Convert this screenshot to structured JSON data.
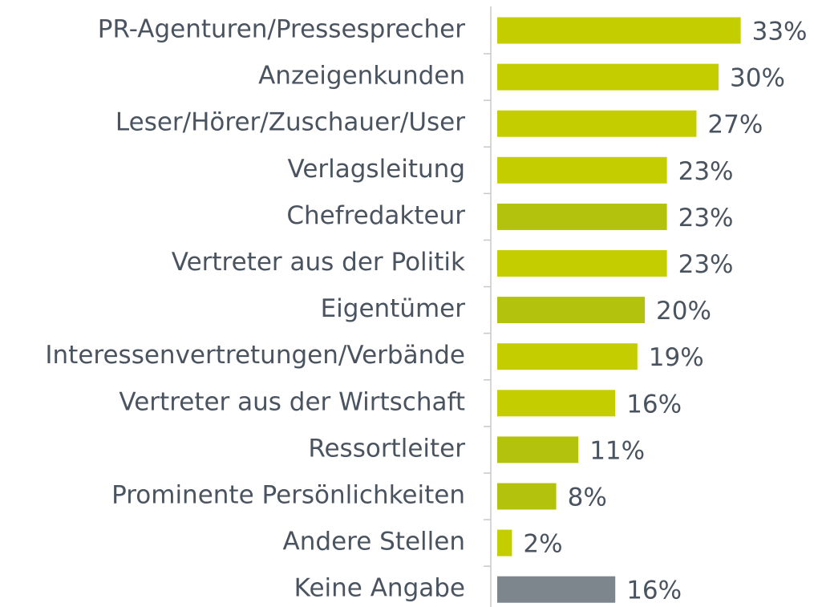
{
  "chart_data": {
    "type": "barh",
    "categories": [
      "PR-Agenturen/Pressesprecher",
      "Anzeigenkunden",
      "Leser/Hörer/Zuschauer/User",
      "Verlagsleitung",
      "Chefredakteur",
      "Vertreter aus der Politik",
      "Eigentümer",
      "Interessenvertretungen/Verbände",
      "Vertreter aus der Wirtschaft",
      "Ressortleiter",
      "Prominente Persönlichkeiten",
      "Andere Stellen",
      "Keine Angabe"
    ],
    "values": [
      33,
      30,
      27,
      23,
      23,
      23,
      20,
      19,
      16,
      11,
      8,
      2,
      16
    ],
    "value_labels": [
      "33%",
      "30%",
      "27%",
      "23%",
      "23%",
      "23%",
      "20%",
      "19%",
      "16%",
      "11%",
      "8%",
      "2%",
      "16%"
    ],
    "colors": [
      "#c3cd00",
      "#c3cd00",
      "#c3cd00",
      "#c3cd00",
      "#b3c20c",
      "#c3cd00",
      "#b3c20c",
      "#c3cd00",
      "#c3cd00",
      "#b3c20c",
      "#b3c20c",
      "#c3cd00",
      "#7d858d"
    ]
  }
}
